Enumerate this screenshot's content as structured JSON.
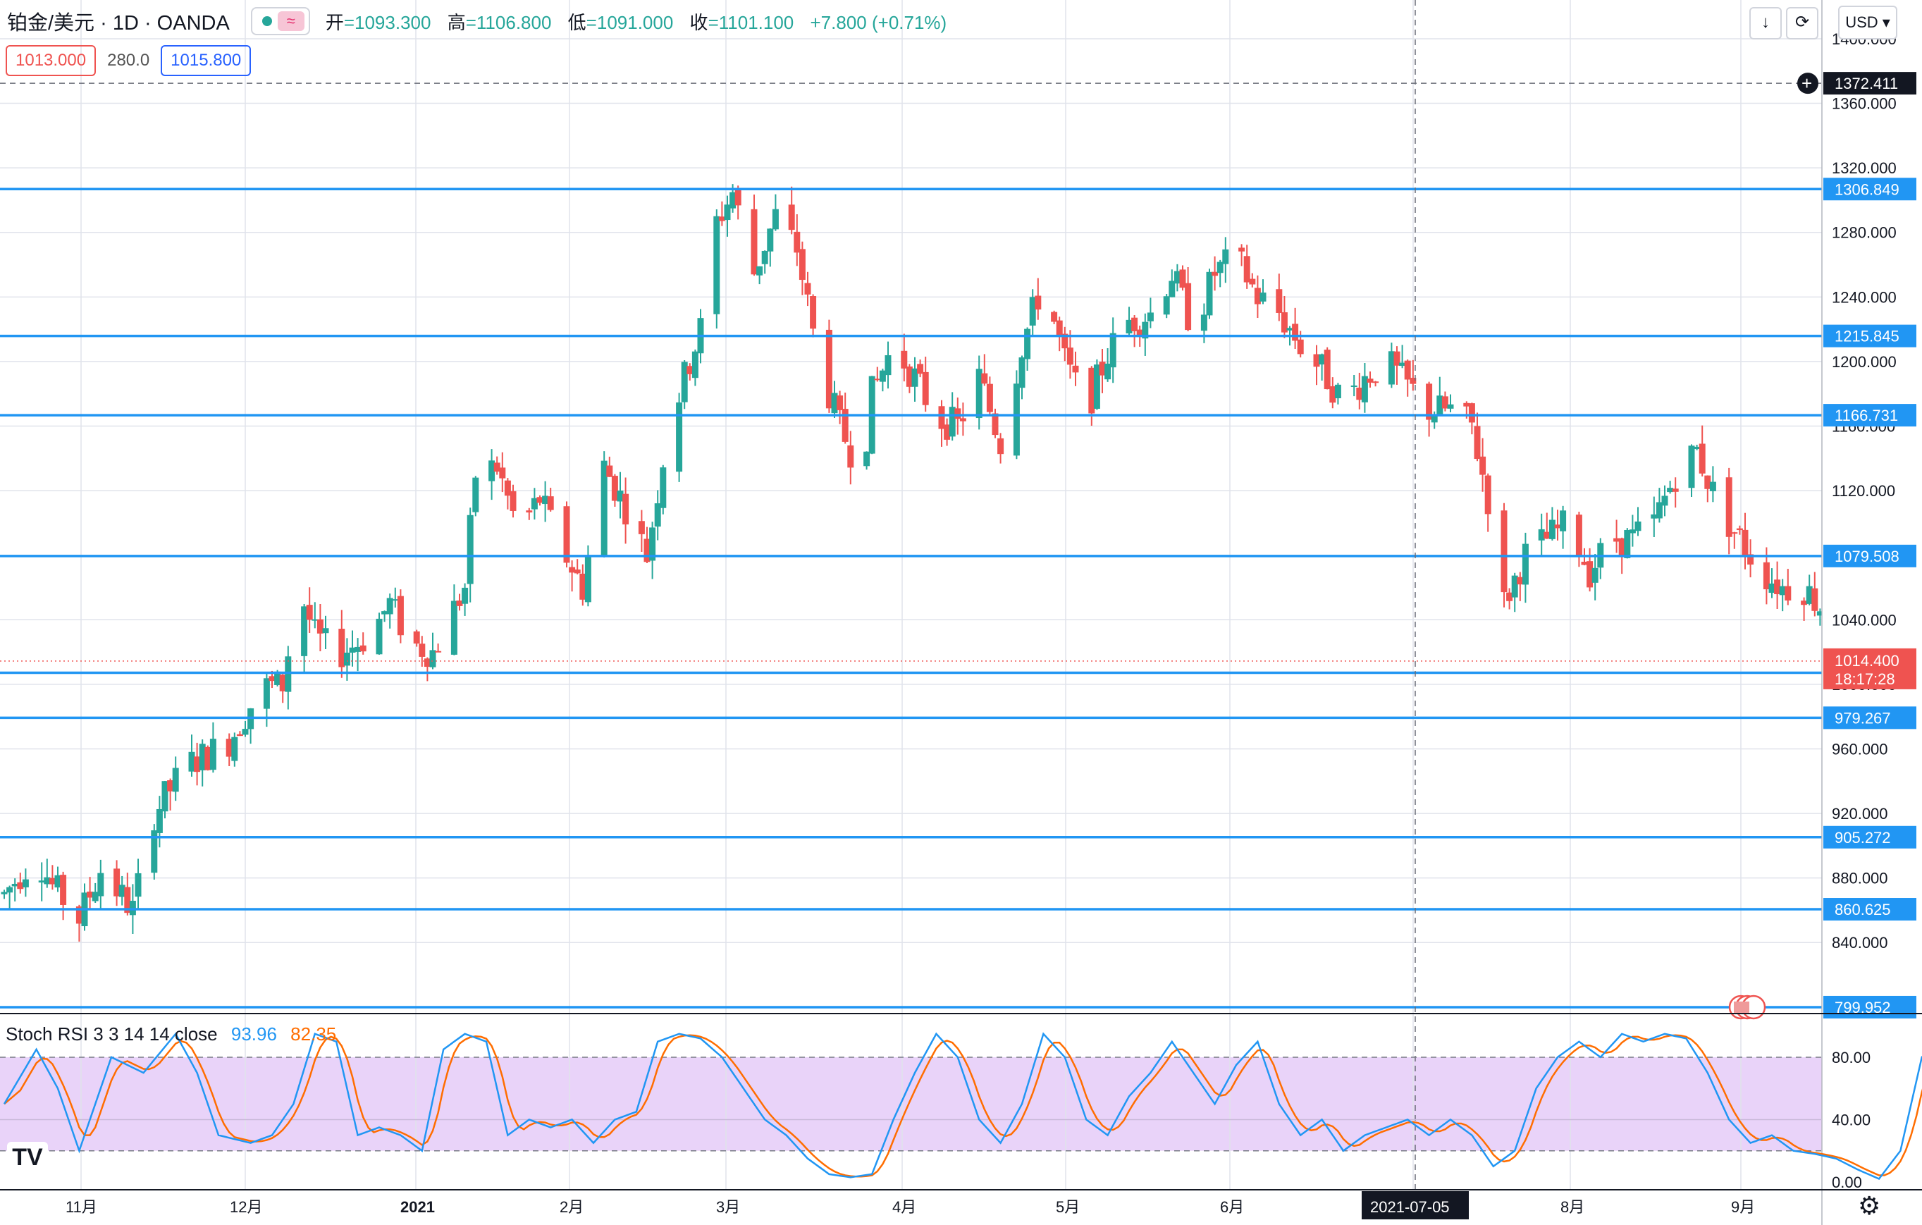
{
  "header": {
    "symbol": "铂金/美元 · 1D · OANDA",
    "open_k": "开",
    "open_v": "=1093.300",
    "high_k": "高",
    "high_v": "=1106.800",
    "low_k": "低",
    "low_v": "=1091.000",
    "close_k": "收",
    "close_v": "=1101.100",
    "change": "+7.800 (+0.71%)",
    "wave_icon": "≈"
  },
  "quote": {
    "sell": "1013.000",
    "spread": "280.0",
    "buy": "1015.800"
  },
  "toolbar": {
    "currency": "USD",
    "download_icon": "↓",
    "refresh_icon": "⟳"
  },
  "indicator": {
    "label": "Stoch RSI 3 3 14 14 close",
    "k_value": "93.96",
    "d_value": "82.35"
  },
  "logo": "TV",
  "colors": {
    "up": "#26a69a",
    "down": "#ef5350",
    "level": "#2196f3",
    "k_line": "#2196f3",
    "d_line": "#ff6d00",
    "band": "#e1c4f7"
  },
  "chart_data": [
    {
      "type": "candlestick",
      "title": "铂金/美元 1D OANDA",
      "ylim": [
        796,
        1424
      ],
      "yticks": [
        "1400.000",
        "1360.000",
        "1320.000",
        "1280.000",
        "1240.000",
        "1200.000",
        "1160.000",
        "1120.000",
        "1080.000",
        "1040.000",
        "1000.000",
        "960.000",
        "920.000",
        "880.000",
        "840.000"
      ],
      "xticks": [
        "11月",
        "12月",
        "2021",
        "2月",
        "3月",
        "4月",
        "5月",
        "6月",
        "7月",
        "8月",
        "9月"
      ],
      "crosshair_date": "2021-07-05",
      "crosshair_price": "1372.411",
      "current_price": "1014.400",
      "countdown": "18:17:28",
      "levels": [
        1306.849,
        1215.845,
        1166.731,
        1079.508,
        1007.158,
        979.267,
        905.272,
        860.625,
        799.952
      ],
      "level_labels": [
        "1306.849",
        "1215.845",
        "1166.731",
        "1079.508",
        "1007.158",
        "979.267",
        "905.272",
        "860.625",
        "799.952"
      ],
      "waypoints": [
        [
          0,
          870
        ],
        [
          6,
          895
        ],
        [
          9,
          875
        ],
        [
          14,
          855
        ],
        [
          18,
          885
        ],
        [
          24,
          860
        ],
        [
          28,
          920
        ],
        [
          34,
          950
        ],
        [
          37,
          955
        ],
        [
          42,
          965
        ],
        [
          48,
          998
        ],
        [
          52,
          1000
        ],
        [
          55,
          1060
        ],
        [
          58,
          1030
        ],
        [
          62,
          1018
        ],
        [
          68,
          1030
        ],
        [
          72,
          1050
        ],
        [
          76,
          1025
        ],
        [
          80,
          1020
        ],
        [
          86,
          1060
        ],
        [
          88,
          1130
        ],
        [
          92,
          1135
        ],
        [
          96,
          1095
        ],
        [
          100,
          1115
        ],
        [
          104,
          1085
        ],
        [
          108,
          1060
        ],
        [
          112,
          1135
        ],
        [
          116,
          1110
        ],
        [
          120,
          1080
        ],
        [
          124,
          1160
        ],
        [
          130,
          1220
        ],
        [
          132,
          1280
        ],
        [
          136,
          1305
        ],
        [
          140,
          1255
        ],
        [
          144,
          1290
        ],
        [
          148,
          1270
        ],
        [
          152,
          1200
        ],
        [
          156,
          1160
        ],
        [
          160,
          1130
        ],
        [
          162,
          1180
        ],
        [
          166,
          1210
        ],
        [
          170,
          1190
        ],
        [
          174,
          1165
        ],
        [
          178,
          1160
        ],
        [
          182,
          1190
        ],
        [
          186,
          1150
        ],
        [
          190,
          1210
        ],
        [
          194,
          1250
        ],
        [
          198,
          1200
        ],
        [
          202,
          1170
        ],
        [
          206,
          1205
        ],
        [
          210,
          1225
        ],
        [
          214,
          1230
        ],
        [
          218,
          1255
        ],
        [
          222,
          1220
        ],
        [
          226,
          1255
        ],
        [
          230,
          1265
        ],
        [
          234,
          1240
        ],
        [
          238,
          1230
        ],
        [
          242,
          1210
        ],
        [
          246,
          1195
        ],
        [
          250,
          1175
        ],
        [
          254,
          1190
        ],
        [
          258,
          1200
        ],
        [
          262,
          1185
        ],
        [
          266,
          1170
        ],
        [
          270,
          1170
        ],
        [
          274,
          1160
        ],
        [
          278,
          1100
        ],
        [
          280,
          1050
        ],
        [
          284,
          1080
        ],
        [
          288,
          1090
        ],
        [
          292,
          1100
        ],
        [
          296,
          1070
        ],
        [
          300,
          1090
        ],
        [
          304,
          1090
        ],
        [
          308,
          1100
        ],
        [
          312,
          1130
        ],
        [
          316,
          1145
        ],
        [
          320,
          1110
        ],
        [
          324,
          1090
        ],
        [
          328,
          1070
        ],
        [
          332,
          1060
        ],
        [
          336,
          1060
        ],
        [
          340,
          1045
        ],
        [
          344,
          1010
        ],
        [
          346,
          978
        ],
        [
          350,
          1010
        ],
        [
          354,
          1030
        ],
        [
          358,
          1010
        ],
        [
          362,
          975
        ],
        [
          366,
          1000
        ],
        [
          370,
          1015
        ],
        [
          374,
          985
        ],
        [
          376,
          1005
        ],
        [
          378,
          1014
        ]
      ],
      "stoch_ylim": [
        -5,
        108
      ],
      "stoch_yticks": [
        "80.00",
        "40.00",
        "0.00"
      ],
      "stoch_k": [
        [
          0,
          50
        ],
        [
          6,
          85
        ],
        [
          10,
          60
        ],
        [
          14,
          20
        ],
        [
          20,
          80
        ],
        [
          26,
          70
        ],
        [
          32,
          95
        ],
        [
          36,
          70
        ],
        [
          40,
          30
        ],
        [
          46,
          25
        ],
        [
          50,
          30
        ],
        [
          54,
          50
        ],
        [
          58,
          95
        ],
        [
          62,
          90
        ],
        [
          66,
          30
        ],
        [
          70,
          35
        ],
        [
          74,
          30
        ],
        [
          78,
          20
        ],
        [
          82,
          85
        ],
        [
          86,
          95
        ],
        [
          90,
          90
        ],
        [
          94,
          30
        ],
        [
          98,
          40
        ],
        [
          102,
          35
        ],
        [
          106,
          40
        ],
        [
          110,
          25
        ],
        [
          114,
          40
        ],
        [
          118,
          45
        ],
        [
          122,
          90
        ],
        [
          126,
          95
        ],
        [
          130,
          92
        ],
        [
          134,
          80
        ],
        [
          138,
          60
        ],
        [
          142,
          40
        ],
        [
          146,
          30
        ],
        [
          150,
          15
        ],
        [
          154,
          5
        ],
        [
          158,
          3
        ],
        [
          162,
          5
        ],
        [
          166,
          40
        ],
        [
          170,
          70
        ],
        [
          174,
          95
        ],
        [
          178,
          80
        ],
        [
          182,
          40
        ],
        [
          186,
          25
        ],
        [
          190,
          50
        ],
        [
          194,
          95
        ],
        [
          198,
          80
        ],
        [
          202,
          40
        ],
        [
          206,
          30
        ],
        [
          210,
          55
        ],
        [
          214,
          70
        ],
        [
          218,
          90
        ],
        [
          222,
          70
        ],
        [
          226,
          50
        ],
        [
          230,
          75
        ],
        [
          234,
          90
        ],
        [
          238,
          50
        ],
        [
          242,
          30
        ],
        [
          246,
          40
        ],
        [
          250,
          20
        ],
        [
          254,
          30
        ],
        [
          258,
          35
        ],
        [
          262,
          40
        ],
        [
          266,
          30
        ],
        [
          270,
          40
        ],
        [
          274,
          30
        ],
        [
          278,
          10
        ],
        [
          282,
          20
        ],
        [
          286,
          60
        ],
        [
          290,
          80
        ],
        [
          294,
          90
        ],
        [
          298,
          80
        ],
        [
          302,
          95
        ],
        [
          306,
          90
        ],
        [
          310,
          95
        ],
        [
          314,
          92
        ],
        [
          318,
          70
        ],
        [
          322,
          40
        ],
        [
          326,
          25
        ],
        [
          330,
          30
        ],
        [
          334,
          20
        ],
        [
          338,
          18
        ],
        [
          342,
          15
        ],
        [
          346,
          8
        ],
        [
          350,
          2
        ],
        [
          354,
          20
        ],
        [
          358,
          80
        ],
        [
          362,
          95
        ],
        [
          366,
          75
        ],
        [
          370,
          50
        ],
        [
          374,
          80
        ],
        [
          378,
          94
        ]
      ]
    }
  ]
}
